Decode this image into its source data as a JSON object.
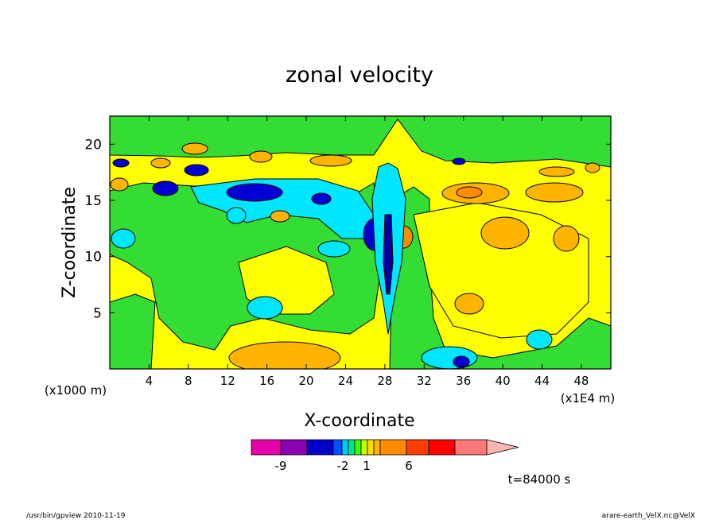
{
  "chart_data": {
    "type": "heatmap",
    "title": "zonal velocity",
    "xlabel": "X-coordinate",
    "ylabel": "Z-coordinate",
    "x_unit_left": "(x1000 m)",
    "x_unit_right": "(x1E4 m)",
    "x_ticks": [
      "4",
      "8",
      "12",
      "16",
      "20",
      "24",
      "28",
      "32",
      "36",
      "40",
      "44",
      "48"
    ],
    "y_ticks": [
      "5",
      "10",
      "15",
      "20"
    ],
    "xlim": [
      0,
      51
    ],
    "ylim": [
      0,
      22.5
    ],
    "time_label": "t=84000 s",
    "colorbar": {
      "labels": [
        "-9",
        "-2",
        "1",
        "6"
      ],
      "colors": [
        "#e600aa",
        "#8c00b4",
        "#0000c8",
        "#0050ff",
        "#00c8ff",
        "#00e680",
        "#3cff00",
        "#c8ff00",
        "#ffdc00",
        "#ffb400",
        "#ff8c00",
        "#ff3c00",
        "#ff0000",
        "#ff7878",
        "#ffb4b4"
      ]
    }
  },
  "footer": {
    "left": "/usr/bin/gpview  2010-11-19",
    "right": "arare-earth_VelX.nc@VelX"
  }
}
